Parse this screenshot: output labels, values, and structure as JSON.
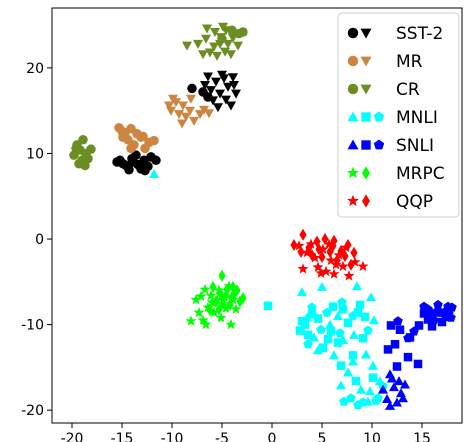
{
  "chart_data": {
    "type": "scatter",
    "title": "",
    "xlabel": "",
    "ylabel": "",
    "xlim": [
      -22,
      19
    ],
    "ylim": [
      -21.5,
      27
    ],
    "x_ticks": [
      "-20",
      "-15",
      "-10",
      "-5",
      "0",
      "5",
      "10",
      "15"
    ],
    "x_tick_values": [
      -20,
      -15,
      -10,
      -5,
      0,
      5,
      10,
      15
    ],
    "y_ticks": [
      "-20",
      "-10",
      "0",
      "10",
      "20"
    ],
    "y_tick_values": [
      -20,
      -10,
      0,
      10,
      20
    ],
    "grid": false,
    "legend_position": "top-right",
    "legend": [
      {
        "label": "SST-2",
        "color": "#000000",
        "markers": [
          "circle",
          "triangle-down"
        ]
      },
      {
        "label": "MR",
        "color": "#cd853f",
        "markers": [
          "circle",
          "triangle-down"
        ]
      },
      {
        "label": "CR",
        "color": "#6b8e23",
        "markers": [
          "circle",
          "triangle-down"
        ]
      },
      {
        "label": "MNLI",
        "color": "#00ffff",
        "markers": [
          "triangle-up",
          "square",
          "pentagon"
        ]
      },
      {
        "label": "SNLI",
        "color": "#0000ff",
        "markers": [
          "triangle-up",
          "square",
          "pentagon"
        ]
      },
      {
        "label": "MRPC",
        "color": "#00ff00",
        "markers": [
          "star",
          "diamond"
        ]
      },
      {
        "label": "QQP",
        "color": "#ff0000",
        "markers": [
          "star",
          "diamond"
        ]
      }
    ],
    "series": [
      {
        "color": "#000000",
        "marker": "circle",
        "points": [
          [
            -15.2,
            9.2
          ],
          [
            -14.6,
            8.6
          ],
          [
            -14.0,
            9.4
          ],
          [
            -13.4,
            8.7
          ],
          [
            -12.8,
            9.2
          ],
          [
            -14.3,
            8.1
          ],
          [
            -13.6,
            9.8
          ],
          [
            -12.4,
            8.5
          ],
          [
            -11.6,
            9.2
          ],
          [
            -15.5,
            9.0
          ],
          [
            -13.1,
            8.2
          ],
          [
            -12.1,
            9.6
          ],
          [
            -13.9,
            9.0
          ],
          [
            -14.9,
            8.8
          ],
          [
            -12.7,
            8.0
          ]
        ]
      },
      {
        "color": "#000000",
        "marker": "triangle-down",
        "points": [
          [
            -6.4,
            19.0
          ],
          [
            -5.6,
            18.4
          ],
          [
            -4.8,
            18.8
          ],
          [
            -6.1,
            17.4
          ],
          [
            -5.2,
            17.0
          ],
          [
            -4.4,
            17.8
          ],
          [
            -3.9,
            18.9
          ],
          [
            -5.9,
            16.2
          ],
          [
            -4.6,
            16.3
          ],
          [
            -3.6,
            17.0
          ],
          [
            -6.7,
            18.0
          ],
          [
            -5.0,
            19.2
          ],
          [
            -4.1,
            15.6
          ],
          [
            -3.8,
            18.0
          ],
          [
            -5.4,
            15.4
          ]
        ]
      },
      {
        "color": "#000000",
        "marker": "circle",
        "points": [
          [
            -8.0,
            17.6
          ],
          [
            -6.9,
            17.2
          ],
          [
            -6.4,
            16.6
          ]
        ]
      },
      {
        "color": "#cd853f",
        "marker": "circle",
        "points": [
          [
            -15.3,
            13.0
          ],
          [
            -14.7,
            12.4
          ],
          [
            -14.1,
            12.9
          ],
          [
            -13.5,
            12.3
          ],
          [
            -12.9,
            12.0
          ],
          [
            -14.4,
            11.6
          ],
          [
            -13.8,
            11.0
          ],
          [
            -12.3,
            11.3
          ],
          [
            -11.8,
            11.5
          ],
          [
            -14.9,
            11.9
          ],
          [
            -13.1,
            11.9
          ],
          [
            -12.7,
            10.6
          ],
          [
            -14.1,
            10.6
          ],
          [
            -15.0,
            12.6
          ]
        ]
      },
      {
        "color": "#cd853f",
        "marker": "triangle-down",
        "points": [
          [
            -9.6,
            16.0
          ],
          [
            -8.9,
            15.6
          ],
          [
            -8.2,
            15.0
          ],
          [
            -9.3,
            14.6
          ],
          [
            -8.6,
            14.3
          ],
          [
            -7.8,
            13.8
          ],
          [
            -10.1,
            15.0
          ],
          [
            -8.1,
            16.4
          ],
          [
            -6.8,
            15.1
          ],
          [
            -9.0,
            13.5
          ],
          [
            -7.2,
            14.6
          ],
          [
            -9.9,
            16.4
          ],
          [
            -6.3,
            14.7
          ],
          [
            -10.3,
            15.6
          ]
        ]
      },
      {
        "color": "#6b8e23",
        "marker": "circle",
        "points": [
          [
            -19.8,
            9.8
          ],
          [
            -19.2,
            10.4
          ],
          [
            -18.6,
            10.0
          ],
          [
            -19.5,
            11.0
          ],
          [
            -18.9,
            11.6
          ],
          [
            -18.4,
            9.4
          ],
          [
            -19.0,
            9.2
          ],
          [
            -18.1,
            10.5
          ],
          [
            -19.3,
            8.8
          ],
          [
            -18.7,
            8.6
          ],
          [
            -19.6,
            10.6
          ]
        ]
      },
      {
        "color": "#6b8e23",
        "marker": "triangle-down",
        "points": [
          [
            -7.4,
            22.8
          ],
          [
            -6.6,
            23.4
          ],
          [
            -5.8,
            22.5
          ],
          [
            -5.1,
            23.6
          ],
          [
            -4.4,
            22.8
          ],
          [
            -6.2,
            21.8
          ],
          [
            -5.5,
            21.4
          ],
          [
            -4.7,
            21.9
          ],
          [
            -3.9,
            23.5
          ],
          [
            -3.4,
            22.6
          ],
          [
            -4.9,
            24.8
          ],
          [
            -5.7,
            24.2
          ],
          [
            -6.9,
            21.6
          ],
          [
            -4.1,
            21.6
          ],
          [
            -5.2,
            22.8
          ],
          [
            -8.5,
            22.6
          ],
          [
            -6.5,
            24.6
          ],
          [
            -4.6,
            24.4
          ]
        ]
      },
      {
        "color": "#6b8e23",
        "marker": "circle",
        "points": [
          [
            -3.3,
            24.0
          ],
          [
            -4.0,
            24.4
          ],
          [
            -2.9,
            24.2
          ],
          [
            -5.0,
            23.4
          ]
        ]
      },
      {
        "color": "#00ffff",
        "marker": "triangle-up",
        "points": [
          [
            -11.8,
            7.6
          ],
          [
            3.0,
            -6.2
          ],
          [
            5.0,
            -5.6
          ],
          [
            8.5,
            -5.5
          ],
          [
            9.9,
            -6.8
          ],
          [
            10.2,
            -9.5
          ],
          [
            4.2,
            -11.5
          ],
          [
            6.2,
            -13.6
          ],
          [
            7.6,
            -15.6
          ],
          [
            8.9,
            -17.6
          ],
          [
            6.9,
            -17.1
          ],
          [
            3.5,
            -9.2
          ],
          [
            5.8,
            -10.0
          ],
          [
            8.2,
            -11.2
          ],
          [
            9.4,
            -13.5
          ],
          [
            10.1,
            -14.8
          ],
          [
            10.8,
            -16.6
          ],
          [
            8.1,
            -14.3
          ],
          [
            9.6,
            -19.0
          ],
          [
            7.1,
            -11.8
          ],
          [
            4.6,
            -13.0
          ],
          [
            9.8,
            -17.8
          ],
          [
            6.6,
            -9.0
          ]
        ]
      },
      {
        "color": "#00ffff",
        "marker": "square",
        "points": [
          [
            -0.4,
            -7.8
          ],
          [
            3.0,
            -9.6
          ],
          [
            4.6,
            -9.3
          ],
          [
            5.9,
            -10.8
          ],
          [
            7.6,
            -9.8
          ],
          [
            8.6,
            -8.6
          ],
          [
            3.6,
            -11.2
          ],
          [
            5.1,
            -12.7
          ],
          [
            6.6,
            -12.1
          ],
          [
            8.1,
            -13.6
          ],
          [
            9.1,
            -11.6
          ],
          [
            2.8,
            -10.7
          ],
          [
            8.8,
            -7.7
          ],
          [
            7.1,
            -8.2
          ],
          [
            6.1,
            -7.9
          ],
          [
            4.0,
            -8.8
          ],
          [
            9.3,
            -9.1
          ],
          [
            5.6,
            -11.7
          ],
          [
            6.9,
            -14.8
          ],
          [
            8.4,
            -16.6
          ],
          [
            10.1,
            -16.2
          ],
          [
            3.3,
            -10.0
          ]
        ]
      },
      {
        "color": "#00ffff",
        "marker": "pentagon",
        "points": [
          [
            4.0,
            -8.0
          ],
          [
            5.5,
            -8.6
          ],
          [
            7.0,
            -7.4
          ],
          [
            8.1,
            -9.0
          ],
          [
            9.6,
            -10.7
          ],
          [
            7.9,
            -18.6
          ],
          [
            9.1,
            -19.1
          ],
          [
            10.6,
            -18.6
          ],
          [
            11.1,
            -17.2
          ],
          [
            7.2,
            -19.0
          ],
          [
            3.6,
            -12.3
          ],
          [
            4.9,
            -10.6
          ],
          [
            6.8,
            -11.0
          ],
          [
            10.4,
            -18.9
          ],
          [
            8.6,
            -19.4
          ]
        ]
      },
      {
        "color": "#0000ff",
        "marker": "triangle-up",
        "points": [
          [
            11.8,
            -15.8
          ],
          [
            12.2,
            -17.3
          ],
          [
            12.9,
            -18.0
          ],
          [
            11.5,
            -18.7
          ],
          [
            12.5,
            -19.1
          ],
          [
            13.3,
            -17.0
          ],
          [
            11.1,
            -17.6
          ],
          [
            12.0,
            -16.3
          ],
          [
            13.1,
            -18.6
          ],
          [
            12.7,
            -16.6
          ],
          [
            11.8,
            -19.5
          ]
        ]
      },
      {
        "color": "#0000ff",
        "marker": "square",
        "points": [
          [
            12.8,
            -10.6
          ],
          [
            13.8,
            -11.5
          ],
          [
            14.7,
            -10.1
          ],
          [
            15.6,
            -9.4
          ],
          [
            16.6,
            -8.6
          ],
          [
            17.4,
            -9.1
          ],
          [
            13.6,
            -13.8
          ],
          [
            14.6,
            -14.6
          ],
          [
            12.3,
            -12.3
          ],
          [
            11.9,
            -10.1
          ],
          [
            16.0,
            -10.2
          ],
          [
            17.7,
            -8.3
          ],
          [
            15.2,
            -8.7
          ],
          [
            12.5,
            -14.9
          ],
          [
            11.6,
            -12.9
          ],
          [
            17.0,
            -9.7
          ]
        ]
      },
      {
        "color": "#0000ff",
        "marker": "pentagon",
        "points": [
          [
            15.2,
            -7.9
          ],
          [
            15.9,
            -8.6
          ],
          [
            16.6,
            -7.7
          ],
          [
            17.3,
            -8.5
          ],
          [
            18.0,
            -8.0
          ],
          [
            16.2,
            -9.5
          ],
          [
            15.6,
            -8.2
          ],
          [
            17.6,
            -7.9
          ],
          [
            14.2,
            -10.8
          ],
          [
            13.6,
            -11.6
          ],
          [
            12.6,
            -9.6
          ],
          [
            17.9,
            -9.2
          ]
        ]
      },
      {
        "color": "#00ff00",
        "marker": "star",
        "points": [
          [
            -6.7,
            -5.9
          ],
          [
            -6.1,
            -6.6
          ],
          [
            -5.5,
            -7.1
          ],
          [
            -4.9,
            -7.6
          ],
          [
            -6.4,
            -8.0
          ],
          [
            -5.8,
            -8.6
          ],
          [
            -4.6,
            -8.1
          ],
          [
            -3.9,
            -7.1
          ],
          [
            -7.3,
            -8.6
          ],
          [
            -6.9,
            -9.5
          ],
          [
            -8.1,
            -9.6
          ],
          [
            -6.6,
            -10.0
          ],
          [
            -4.1,
            -10.0
          ],
          [
            -7.6,
            -7.1
          ],
          [
            -5.3,
            -6.0
          ],
          [
            -4.3,
            -5.5
          ],
          [
            -6.0,
            -7.4
          ],
          [
            -3.6,
            -8.2
          ],
          [
            -7.1,
            -6.7
          ],
          [
            -5.1,
            -9.2
          ]
        ]
      },
      {
        "color": "#00ff00",
        "marker": "diamond",
        "points": [
          [
            -5.9,
            -5.6
          ],
          [
            -5.2,
            -6.3
          ],
          [
            -4.5,
            -5.9
          ],
          [
            -3.8,
            -6.5
          ],
          [
            -3.2,
            -7.3
          ],
          [
            -5.6,
            -7.3
          ],
          [
            -4.9,
            -7.0
          ],
          [
            -4.2,
            -7.7
          ],
          [
            -3.5,
            -6.0
          ],
          [
            -5.0,
            -4.3
          ],
          [
            -6.2,
            -8.3
          ],
          [
            -4.0,
            -6.8
          ],
          [
            -5.3,
            -8.2
          ],
          [
            -4.6,
            -6.6
          ],
          [
            -3.9,
            -5.6
          ],
          [
            -2.9,
            -6.9
          ]
        ]
      },
      {
        "color": "#ff0000",
        "marker": "star",
        "points": [
          [
            2.7,
            -0.8
          ],
          [
            3.5,
            -1.6
          ],
          [
            4.3,
            -2.2
          ],
          [
            5.1,
            -1.2
          ],
          [
            5.9,
            -2.5
          ],
          [
            6.7,
            -1.9
          ],
          [
            4.6,
            -3.3
          ],
          [
            5.4,
            -3.8
          ],
          [
            6.2,
            -4.1
          ],
          [
            7.1,
            -3.2
          ],
          [
            3.1,
            -3.5
          ],
          [
            8.3,
            -2.7
          ],
          [
            7.7,
            -4.3
          ],
          [
            9.1,
            -3.2
          ],
          [
            5.7,
            -0.6
          ],
          [
            4.9,
            -4.0
          ],
          [
            6.4,
            -3.0
          ],
          [
            7.4,
            -1.0
          ],
          [
            3.9,
            -0.6
          ]
        ]
      },
      {
        "color": "#ff0000",
        "marker": "diamond",
        "points": [
          [
            2.2,
            -0.7
          ],
          [
            3.1,
            0.5
          ],
          [
            3.7,
            -1.0
          ],
          [
            4.5,
            -0.3
          ],
          [
            5.3,
            0.0
          ],
          [
            6.1,
            -0.8
          ],
          [
            6.9,
            -1.4
          ],
          [
            7.6,
            -0.7
          ],
          [
            5.0,
            -2.1
          ],
          [
            6.5,
            -2.5
          ],
          [
            4.0,
            -1.9
          ],
          [
            7.3,
            -2.0
          ],
          [
            8.2,
            -1.6
          ],
          [
            5.8,
            -1.5
          ],
          [
            2.9,
            -1.5
          ],
          [
            6.2,
            -0.2
          ],
          [
            4.7,
            -1.2
          ],
          [
            7.9,
            -3.0
          ]
        ]
      }
    ]
  }
}
